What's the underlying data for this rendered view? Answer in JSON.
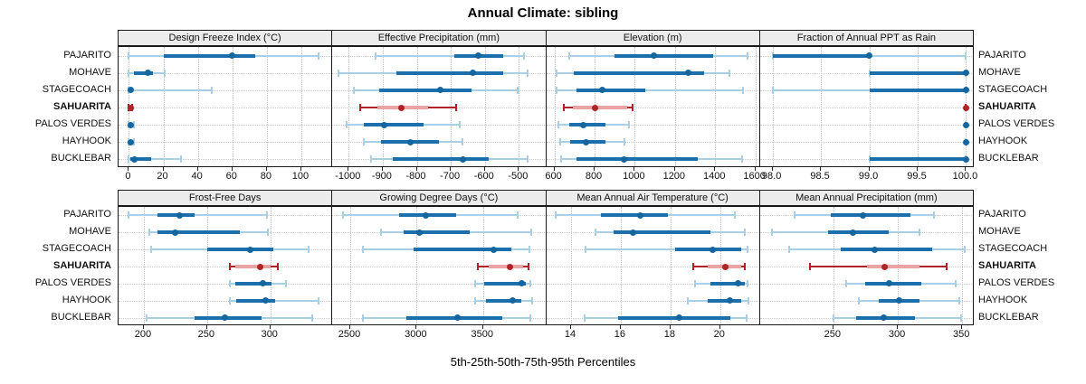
{
  "title": "Annual Climate: sibling",
  "footer": "5th-25th-50th-75th-95th Percentiles",
  "sites": [
    {
      "label": "PAJARITO",
      "highlight": false
    },
    {
      "label": "MOHAVE",
      "highlight": false
    },
    {
      "label": "STAGECOACH",
      "highlight": false
    },
    {
      "label": "SAHUARITA",
      "highlight": true
    },
    {
      "label": "PALOS VERDES",
      "highlight": false
    },
    {
      "label": "HAYHOOK",
      "highlight": false
    },
    {
      "label": "BUCKLEBAR",
      "highlight": false
    }
  ],
  "colors": {
    "blue_dark": "#1c6fad",
    "blue_dot": "#15659e",
    "blue_light": "#a9cfe5",
    "red_dark": "#b02428",
    "red_light": "#e8a3a3",
    "grid": "#c4c4c4",
    "header_bg": "#ececec",
    "border": "#1a1a1a"
  },
  "percentile_legend": [
    "5th",
    "25th",
    "50th",
    "75th",
    "95th"
  ],
  "chart_data": [
    {
      "type": "dotplot-percentiles",
      "title": "Design Freeze Index (°C)",
      "xlim": [
        -6,
        118
      ],
      "ticks": [
        0,
        20,
        40,
        60,
        80,
        100
      ],
      "tick_labels": [
        "0",
        "20",
        "40",
        "60",
        "80",
        "100"
      ],
      "series": [
        {
          "site": "PAJARITO",
          "p": [
            0,
            20,
            60,
            73,
            110
          ]
        },
        {
          "site": "MOHAVE",
          "p": [
            0,
            3,
            11,
            14,
            21
          ]
        },
        {
          "site": "STAGECOACH",
          "p": [
            0,
            0,
            1,
            2,
            48
          ]
        },
        {
          "site": "SAHUARITA",
          "p": [
            0,
            0,
            1,
            1,
            2
          ]
        },
        {
          "site": "PALOS VERDES",
          "p": [
            0,
            0,
            1,
            1,
            3
          ]
        },
        {
          "site": "HAYHOOK",
          "p": [
            0,
            0,
            1,
            2,
            3
          ]
        },
        {
          "site": "BUCKLEBAR",
          "p": [
            0,
            1,
            3,
            13,
            30
          ]
        }
      ]
    },
    {
      "type": "dotplot-percentiles",
      "title": "Effective Precipitation (mm)",
      "xlim": [
        -1048,
        -420
      ],
      "ticks": [
        -1000,
        -900,
        -800,
        -700,
        -600,
        -500
      ],
      "tick_labels": [
        "-1000",
        "-900",
        "-800",
        "-700",
        "-600",
        "-500"
      ],
      "series": [
        {
          "site": "PAJARITO",
          "p": [
            -920,
            -690,
            -620,
            -545,
            -485
          ]
        },
        {
          "site": "MOHAVE",
          "p": [
            -1030,
            -860,
            -635,
            -545,
            -475
          ]
        },
        {
          "site": "STAGECOACH",
          "p": [
            -985,
            -910,
            -730,
            -640,
            -505
          ]
        },
        {
          "site": "SAHUARITA",
          "p": [
            -965,
            -915,
            -845,
            -768,
            -685
          ]
        },
        {
          "site": "PALOS VERDES",
          "p": [
            -1005,
            -955,
            -895,
            -780,
            -675
          ]
        },
        {
          "site": "HAYHOOK",
          "p": [
            -955,
            -905,
            -820,
            -735,
            -665
          ]
        },
        {
          "site": "BUCKLEBAR",
          "p": [
            -935,
            -870,
            -665,
            -590,
            -475
          ]
        }
      ]
    },
    {
      "type": "dotplot-percentiles",
      "title": "Elevation (m)",
      "xlim": [
        559,
        1623
      ],
      "ticks": [
        600,
        800,
        1000,
        1200,
        1400,
        1600
      ],
      "tick_labels": [
        "600",
        "800",
        "1000",
        "1200",
        "1400",
        "1600"
      ],
      "series": [
        {
          "site": "PAJARITO",
          "p": [
            673,
            900,
            1095,
            1390,
            1560
          ]
        },
        {
          "site": "MOHAVE",
          "p": [
            609,
            695,
            1265,
            1345,
            1470
          ]
        },
        {
          "site": "STAGECOACH",
          "p": [
            609,
            709,
            836,
            1050,
            1540
          ]
        },
        {
          "site": "SAHUARITA",
          "p": [
            645,
            690,
            800,
            960,
            990
          ]
        },
        {
          "site": "PALOS VERDES",
          "p": [
            620,
            675,
            745,
            855,
            970
          ]
        },
        {
          "site": "HAYHOOK",
          "p": [
            627,
            677,
            755,
            855,
            950
          ]
        },
        {
          "site": "BUCKLEBAR",
          "p": [
            635,
            710,
            945,
            1315,
            1535
          ]
        }
      ]
    },
    {
      "type": "dotplot-percentiles",
      "title": "Fraction of Annual PPT as Rain",
      "xlim": [
        97.87,
        100.08
      ],
      "ticks": [
        98.0,
        98.5,
        99.0,
        99.5,
        100.0
      ],
      "tick_labels": [
        "98.0",
        "98.5",
        "99.0",
        "99.5",
        "100.0"
      ],
      "series": [
        {
          "site": "PAJARITO",
          "p": [
            98.0,
            98.0,
            99.0,
            99.0,
            100.0
          ]
        },
        {
          "site": "MOHAVE",
          "p": [
            99.0,
            99.0,
            100.0,
            100.0,
            100.0
          ]
        },
        {
          "site": "STAGECOACH",
          "p": [
            98.0,
            99.0,
            100.0,
            100.0,
            100.0
          ]
        },
        {
          "site": "SAHUARITA",
          "p": [
            100.0,
            100.0,
            100.0,
            100.0,
            100.0
          ]
        },
        {
          "site": "PALOS VERDES",
          "p": [
            100.0,
            100.0,
            100.0,
            100.0,
            100.0
          ]
        },
        {
          "site": "HAYHOOK",
          "p": [
            100.0,
            100.0,
            100.0,
            100.0,
            100.0
          ]
        },
        {
          "site": "BUCKLEBAR",
          "p": [
            99.0,
            99.0,
            100.0,
            100.0,
            100.0
          ]
        }
      ]
    },
    {
      "type": "dotplot-percentiles",
      "title": "Frost-Free Days",
      "xlim": [
        180,
        349
      ],
      "ticks": [
        200,
        250,
        300
      ],
      "tick_labels": [
        "200",
        "250",
        "300"
      ],
      "series": [
        {
          "site": "PAJARITO",
          "p": [
            188,
            211,
            228,
            240,
            297
          ]
        },
        {
          "site": "MOHAVE",
          "p": [
            204,
            211,
            225,
            276,
            298
          ]
        },
        {
          "site": "STAGECOACH",
          "p": [
            206,
            250,
            284,
            302,
            330
          ]
        },
        {
          "site": "SAHUARITA",
          "p": [
            268,
            272,
            292,
            300,
            306
          ]
        },
        {
          "site": "PALOS VERDES",
          "p": [
            268,
            272,
            294,
            301,
            312
          ]
        },
        {
          "site": "HAYHOOK",
          "p": [
            268,
            273,
            296,
            304,
            338
          ]
        },
        {
          "site": "BUCKLEBAR",
          "p": [
            202,
            240,
            264,
            293,
            333
          ]
        }
      ]
    },
    {
      "type": "dotplot-percentiles",
      "title": "Growing Degree Days (°C)",
      "xlim": [
        2365,
        3975
      ],
      "ticks": [
        2500,
        3000,
        3500
      ],
      "tick_labels": [
        "2500",
        "3000",
        "3500"
      ],
      "series": [
        {
          "site": "PAJARITO",
          "p": [
            2445,
            2870,
            3070,
            3300,
            3760
          ]
        },
        {
          "site": "MOHAVE",
          "p": [
            2730,
            2900,
            3020,
            3400,
            3860
          ]
        },
        {
          "site": "STAGECOACH",
          "p": [
            2595,
            2975,
            3578,
            3715,
            3850
          ]
        },
        {
          "site": "SAHUARITA",
          "p": [
            3460,
            3545,
            3700,
            3800,
            3840
          ]
        },
        {
          "site": "PALOS VERDES",
          "p": [
            3440,
            3510,
            3790,
            3820,
            3855
          ]
        },
        {
          "site": "HAYHOOK",
          "p": [
            3440,
            3520,
            3720,
            3790,
            3870
          ]
        },
        {
          "site": "BUCKLEBAR",
          "p": [
            2595,
            2920,
            3305,
            3645,
            3855
          ]
        }
      ]
    },
    {
      "type": "dotplot-percentiles",
      "title": "Mean Annual Air Temperature (°C)",
      "xlim": [
        13.0,
        21.6
      ],
      "ticks": [
        14,
        16,
        18,
        20
      ],
      "tick_labels": [
        "14",
        "16",
        "18",
        "20"
      ],
      "series": [
        {
          "site": "PAJARITO",
          "p": [
            13.4,
            15.2,
            16.8,
            17.9,
            20.6
          ]
        },
        {
          "site": "MOHAVE",
          "p": [
            15.0,
            15.7,
            16.5,
            19.6,
            21.0
          ]
        },
        {
          "site": "STAGECOACH",
          "p": [
            14.6,
            18.2,
            19.7,
            20.85,
            21.1
          ]
        },
        {
          "site": "SAHUARITA",
          "p": [
            18.9,
            19.5,
            20.2,
            20.85,
            21.0
          ]
        },
        {
          "site": "PALOS VERDES",
          "p": [
            19.0,
            19.6,
            20.7,
            21.0,
            21.1
          ]
        },
        {
          "site": "HAYHOOK",
          "p": [
            18.7,
            19.5,
            20.4,
            20.85,
            21.15
          ]
        },
        {
          "site": "BUCKLEBAR",
          "p": [
            14.55,
            15.9,
            18.35,
            20.4,
            21.05
          ]
        }
      ]
    },
    {
      "type": "dotplot-percentiles",
      "title": "Mean Annual Precipitation (mm)",
      "xlim": [
        193,
        359
      ],
      "ticks": [
        250,
        300,
        350
      ],
      "tick_labels": [
        "250",
        "300",
        "350"
      ],
      "series": [
        {
          "site": "PAJARITO",
          "p": [
            220,
            248,
            273,
            310,
            328
          ]
        },
        {
          "site": "MOHAVE",
          "p": [
            202,
            246,
            265,
            293,
            317
          ]
        },
        {
          "site": "STAGECOACH",
          "p": [
            216,
            256,
            282,
            327,
            352
          ]
        },
        {
          "site": "SAHUARITA",
          "p": [
            232,
            276,
            290,
            317,
            338
          ]
        },
        {
          "site": "PALOS VERDES",
          "p": [
            260,
            275,
            293,
            318,
            345
          ]
        },
        {
          "site": "HAYHOOK",
          "p": [
            270,
            285,
            301,
            317,
            348
          ]
        },
        {
          "site": "BUCKLEBAR",
          "p": [
            250,
            268,
            289,
            313,
            349
          ]
        }
      ]
    }
  ]
}
